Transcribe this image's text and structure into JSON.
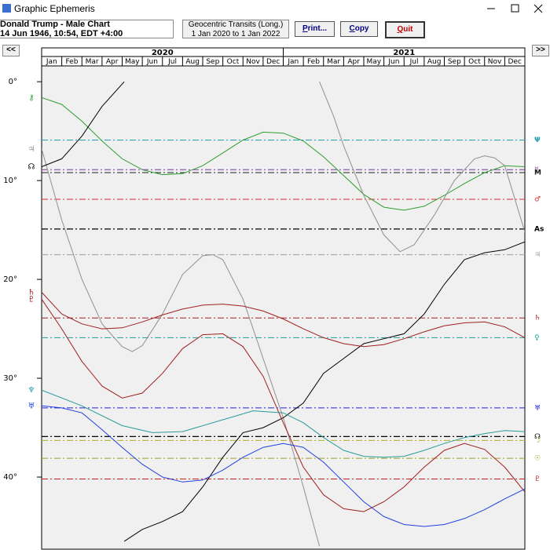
{
  "window": {
    "title": "Graphic Ephemeris"
  },
  "header": {
    "chart_name": "Donald Trump - Male Chart",
    "chart_date": "14 Jun 1946, 10:54, EDT +4:00",
    "transit_type": "Geocentric Transits (Long.)",
    "transit_range": "1 Jan 2020 to 1 Jan 2022"
  },
  "buttons": [
    "Print...",
    "Copy",
    "Quit"
  ],
  "nav": [
    "<<",
    ">>"
  ],
  "chart_data": {
    "type": "line",
    "years": [
      "2020",
      "2021"
    ],
    "months": [
      "Jan",
      "Feb",
      "Mar",
      "Apr",
      "May",
      "Jun",
      "Jul",
      "Aug",
      "Sep",
      "Oct",
      "Nov",
      "Dec"
    ],
    "xlim": [
      0,
      24
    ],
    "ylim": [
      -1.6,
      47.3
    ],
    "yticks": [
      {
        "value": 0,
        "label": "0°"
      },
      {
        "value": 10,
        "label": "10°"
      },
      {
        "value": 20,
        "label": "20°"
      },
      {
        "value": 30,
        "label": "30°"
      },
      {
        "value": 40,
        "label": "40°"
      }
    ],
    "natal_lines": [
      {
        "label": "Ψ",
        "value": 5.9,
        "color": "#1fa0b0"
      },
      {
        "label": "☿",
        "value": 8.9,
        "color": "#8030a0"
      },
      {
        "label": "M",
        "value": 9.2,
        "color": "#202020"
      },
      {
        "label": "♂",
        "value": 11.9,
        "color": "#e03030"
      },
      {
        "label": "As",
        "value": 14.9,
        "color": "#000000"
      },
      {
        "label": "♃",
        "value": 17.5,
        "color": "#a0a0a0"
      },
      {
        "label": "♄",
        "value": 23.9,
        "color": "#a02020"
      },
      {
        "label": "♀",
        "value": 25.9,
        "color": "#1fa0a0"
      },
      {
        "label": "♅",
        "value": 33.0,
        "color": "#2020e0"
      },
      {
        "label": "☊",
        "value": 35.9,
        "color": "#000000"
      },
      {
        "label": "☽",
        "value": 36.3,
        "color": "#b0b020"
      },
      {
        "label": "☉",
        "value": 38.1,
        "color": "#a0a020"
      },
      {
        "label": "♇",
        "value": 40.2,
        "color": "#c02020"
      }
    ],
    "series": [
      {
        "name": "⚷",
        "color": "#2e9e2e",
        "x": [
          0,
          1,
          2,
          3,
          4,
          5,
          6,
          7,
          8,
          9,
          10,
          11,
          12,
          13,
          14,
          15,
          16,
          17,
          18,
          19,
          20,
          21,
          22,
          23,
          24
        ],
        "values": [
          1.6,
          2.3,
          4,
          6,
          7.8,
          8.9,
          9.4,
          9.3,
          8.5,
          7.2,
          5.9,
          5.1,
          5.2,
          6,
          7.6,
          9.5,
          11.4,
          12.7,
          13,
          12.6,
          11.5,
          10.3,
          9.2,
          8.5,
          8.6
        ]
      },
      {
        "name": "♃",
        "color": "#909090",
        "x": [
          0,
          1,
          2,
          3,
          4,
          4.5,
          5,
          6,
          7,
          8,
          8.5,
          9,
          10,
          11,
          12,
          13,
          13.8,
          13.8,
          13.8,
          14.5,
          15,
          16,
          17,
          17.8,
          18.5,
          19.5,
          20.5,
          21.5,
          22,
          22.5,
          23,
          24
        ],
        "values": [
          6.8,
          14,
          20,
          24.5,
          26.8,
          27.3,
          26.7,
          23.5,
          19.5,
          17.6,
          17.5,
          18,
          22,
          28,
          34,
          41,
          47,
          null,
          0,
          3.5,
          6.5,
          11.5,
          15.5,
          17.2,
          16.5,
          13.5,
          10,
          7.8,
          7.5,
          7.7,
          8.5,
          15.2
        ]
      },
      {
        "name": "☊",
        "color": "#000000",
        "x": [
          0,
          1,
          2,
          3,
          4.1,
          4.1,
          4.1,
          5,
          6,
          7,
          8,
          9,
          10,
          11,
          12,
          13,
          14,
          15,
          16,
          17,
          18,
          19,
          20,
          21,
          22,
          23,
          24
        ],
        "values": [
          8.6,
          7.8,
          5.5,
          2.5,
          0,
          null,
          46.5,
          45.3,
          44.5,
          43.5,
          41,
          38,
          35.5,
          35,
          34,
          32.5,
          29.5,
          28,
          26.5,
          26,
          25.5,
          23.5,
          20.5,
          18,
          17.3,
          17,
          16.2
        ]
      },
      {
        "name": "♄",
        "color": "#a02020",
        "x": [
          0,
          1,
          2,
          3,
          4,
          5,
          6,
          7,
          8,
          9,
          10,
          11,
          12,
          13,
          14,
          15,
          16,
          17,
          18,
          19,
          20,
          21,
          22,
          23,
          24
        ],
        "values": [
          21.3,
          23.5,
          24.5,
          25,
          24.9,
          24.3,
          23.6,
          23,
          22.6,
          22.5,
          22.7,
          23.2,
          24,
          25,
          25.9,
          26.5,
          26.8,
          26.6,
          26,
          25.3,
          24.7,
          24.4,
          24.3,
          24.8,
          25.9
        ]
      },
      {
        "name": "♇",
        "color": "#a02020",
        "x": [
          0,
          1,
          2,
          3,
          4,
          5,
          6,
          7,
          8,
          9,
          10,
          11,
          12,
          13,
          14,
          15,
          16,
          17,
          18,
          19,
          20,
          21,
          22,
          23,
          24
        ],
        "values": [
          22,
          25,
          28.3,
          30.8,
          32,
          31.5,
          29.5,
          27,
          25.6,
          25.5,
          26.8,
          29.8,
          34.5,
          39,
          41.8,
          43.2,
          43.5,
          42.5,
          41,
          39,
          37.3,
          36.6,
          37.2,
          39,
          41.5
        ]
      },
      {
        "name": "♆",
        "color": "#2a9a9a",
        "x": [
          0,
          2,
          4,
          5.5,
          7,
          9,
          10.5,
          12,
          13,
          14,
          15,
          16,
          17,
          18,
          19,
          20,
          21,
          22,
          23,
          24
        ],
        "values": [
          31.2,
          32.8,
          34.8,
          35.5,
          35.4,
          34.2,
          33.3,
          33.5,
          34.5,
          36,
          37.3,
          37.9,
          38,
          37.9,
          37.3,
          36.6,
          36,
          35.6,
          35.3,
          35.4
        ]
      },
      {
        "name": "♅",
        "color": "#2040e0",
        "x": [
          0,
          1,
          2,
          3,
          4,
          5,
          6,
          7,
          8,
          9,
          10,
          11,
          12,
          13,
          14,
          15,
          16,
          17,
          18,
          19,
          20,
          21,
          22,
          23,
          24
        ],
        "values": [
          32.8,
          33,
          33.5,
          35.2,
          37,
          38.7,
          40,
          40.5,
          40.3,
          39.3,
          38,
          37,
          36.6,
          37,
          38.5,
          40.5,
          42.5,
          44,
          44.8,
          45,
          44.8,
          44.2,
          43.3,
          42.2,
          41.2
        ]
      }
    ]
  }
}
